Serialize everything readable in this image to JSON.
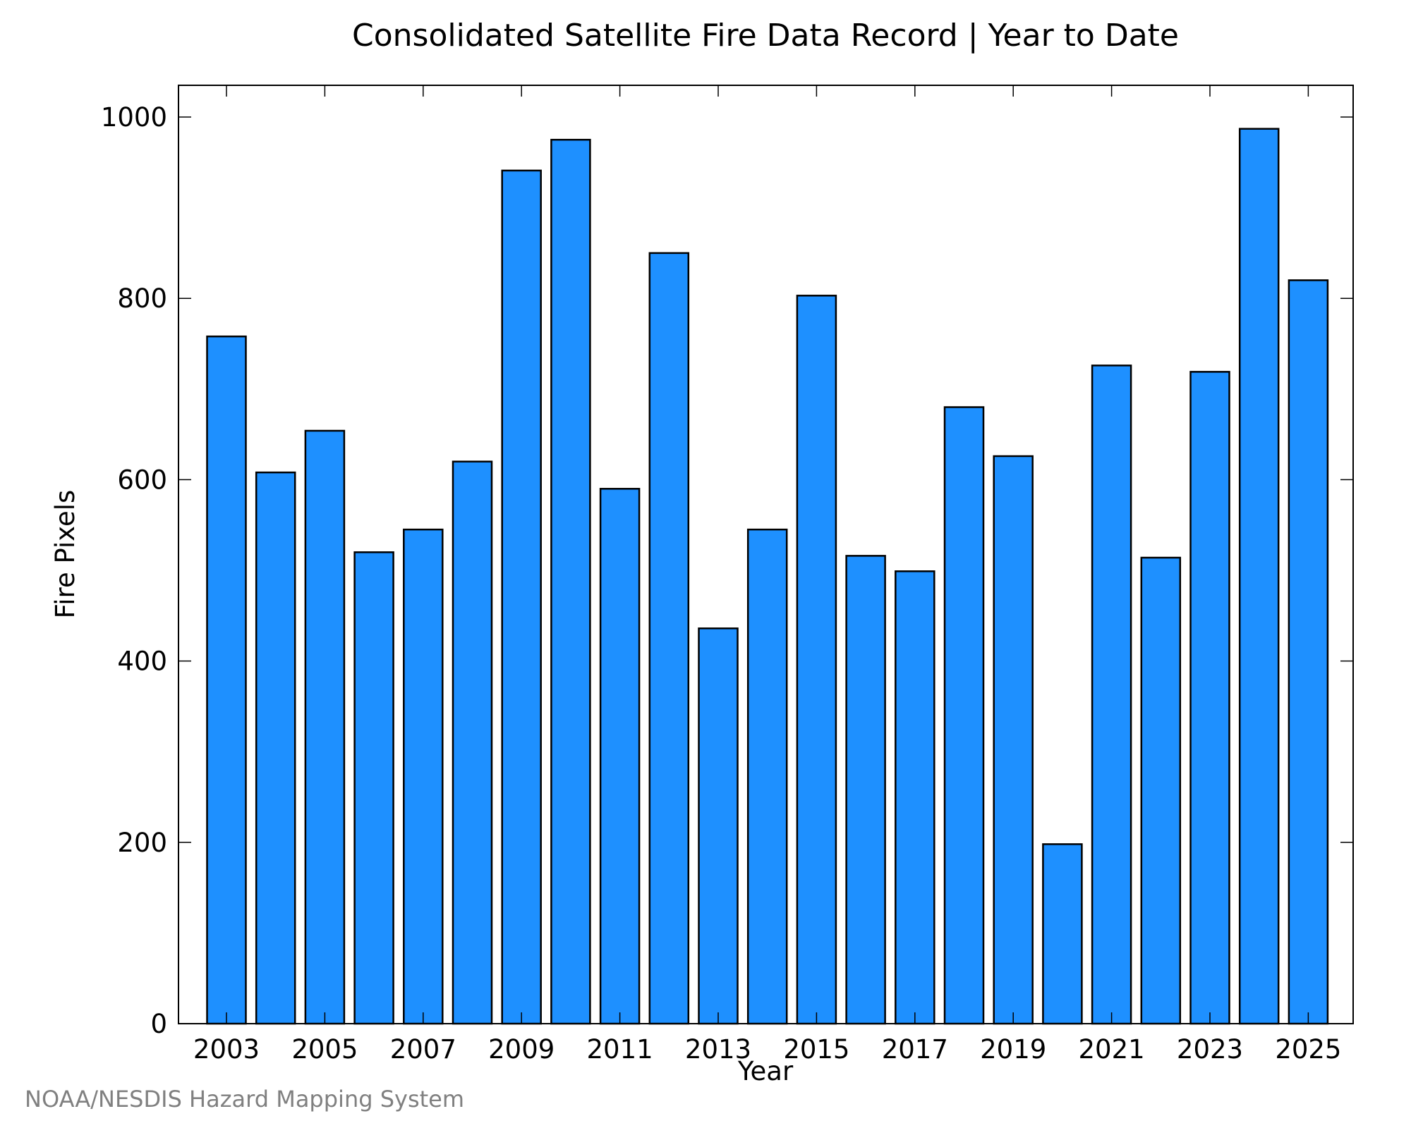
{
  "chart_data": {
    "type": "bar",
    "title": "Consolidated Satellite Fire Data Record | Year to Date",
    "xlabel": "Year",
    "ylabel": "Fire Pixels",
    "categories": [
      "2003",
      "2004",
      "2005",
      "2006",
      "2007",
      "2008",
      "2009",
      "2010",
      "2011",
      "2012",
      "2013",
      "2014",
      "2015",
      "2016",
      "2017",
      "2018",
      "2019",
      "2020",
      "2021",
      "2022",
      "2023",
      "2024",
      "2025"
    ],
    "values": [
      758,
      608,
      654,
      520,
      545,
      620,
      941,
      975,
      590,
      850,
      436,
      545,
      803,
      516,
      499,
      680,
      626,
      198,
      726,
      514,
      719,
      987,
      820
    ],
    "x_tick_labels": [
      "2003",
      "2005",
      "2007",
      "2009",
      "2011",
      "2013",
      "2015",
      "2017",
      "2019",
      "2021",
      "2023",
      "2025"
    ],
    "y_tick_labels": [
      "0",
      "200",
      "400",
      "600",
      "800",
      "1000"
    ],
    "y_ticks": [
      0,
      200,
      400,
      600,
      800,
      1000
    ],
    "ylim": [
      0,
      1035
    ],
    "grid": false,
    "bar_color": "#1e90ff",
    "bar_edge_color": "#000000"
  },
  "credit": "NOAA/NESDIS Hazard Mapping System"
}
